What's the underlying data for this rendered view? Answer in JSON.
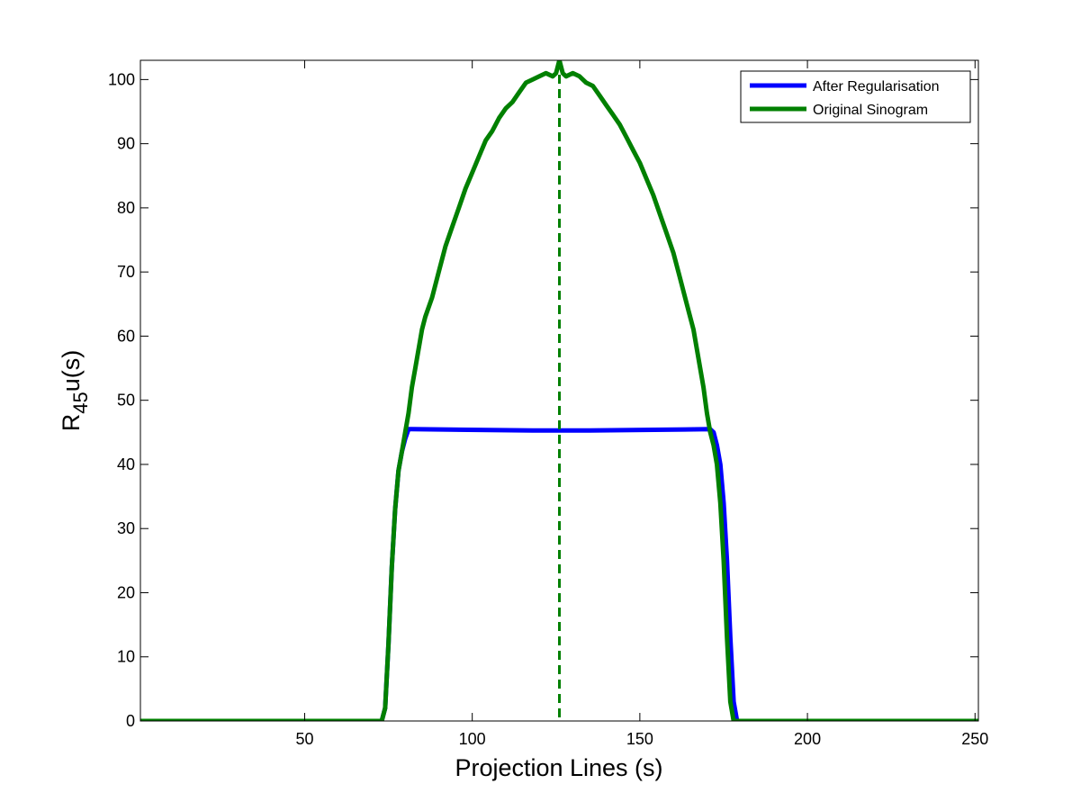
{
  "chart_data": {
    "type": "line",
    "xlabel": "Projection Lines (s)",
    "ylabel_main": "R",
    "ylabel_sub": "45",
    "ylabel_tail": "u(s)",
    "xlim": [
      1,
      251
    ],
    "ylim": [
      0,
      103
    ],
    "xticks": [
      50,
      100,
      150,
      200,
      250
    ],
    "yticks": [
      0,
      10,
      20,
      30,
      40,
      50,
      60,
      70,
      80,
      90,
      100
    ],
    "grid": false,
    "legend_position": "top-right",
    "series": [
      {
        "name": "After Regularisation",
        "color": "#0000ff",
        "x": [
          1,
          73,
          74,
          75,
          76,
          77,
          78,
          79,
          80,
          81,
          82,
          118,
          135,
          171,
          172,
          173,
          174,
          175,
          176,
          177,
          178,
          179,
          251
        ],
        "y": [
          0,
          0,
          2,
          12,
          24,
          33,
          39,
          42,
          44,
          45.5,
          45.5,
          45.3,
          45.3,
          45.5,
          45,
          43,
          40,
          34,
          25,
          13,
          3,
          0,
          0
        ]
      },
      {
        "name": "Original Sinogram",
        "color": "#008000",
        "x": [
          1,
          73,
          74,
          75,
          76,
          77,
          78,
          79,
          80,
          81,
          82,
          83,
          84,
          85,
          86,
          88,
          90,
          92,
          94,
          96,
          98,
          100,
          102,
          104,
          106,
          108,
          110,
          112,
          114,
          116,
          118,
          120,
          122,
          124,
          125,
          126,
          127,
          128,
          130,
          132,
          134,
          136,
          138,
          140,
          142,
          144,
          146,
          148,
          150,
          152,
          154,
          156,
          158,
          160,
          162,
          164,
          166,
          167,
          168,
          169,
          170,
          171,
          172,
          173,
          174,
          175,
          176,
          177,
          178,
          179,
          251
        ],
        "y": [
          0,
          0,
          2,
          12,
          24,
          33,
          39,
          42,
          45,
          48,
          52,
          55,
          58,
          61,
          63,
          66,
          70,
          74,
          77,
          80,
          83,
          85.5,
          88,
          90.5,
          92,
          94,
          95.5,
          96.5,
          98,
          99.5,
          100,
          100.5,
          101,
          100.5,
          101,
          103,
          101,
          100.5,
          101,
          100.5,
          99.5,
          99,
          97.5,
          96,
          94.5,
          93,
          91,
          89,
          87,
          84.5,
          82,
          79,
          76,
          73,
          69,
          65,
          61,
          58,
          55,
          52,
          48,
          45,
          43,
          40,
          34,
          25,
          13,
          3,
          0,
          0,
          0
        ]
      }
    ],
    "reference_lines": [
      {
        "x": 126,
        "color": "#008000",
        "style": "dashed"
      }
    ]
  }
}
